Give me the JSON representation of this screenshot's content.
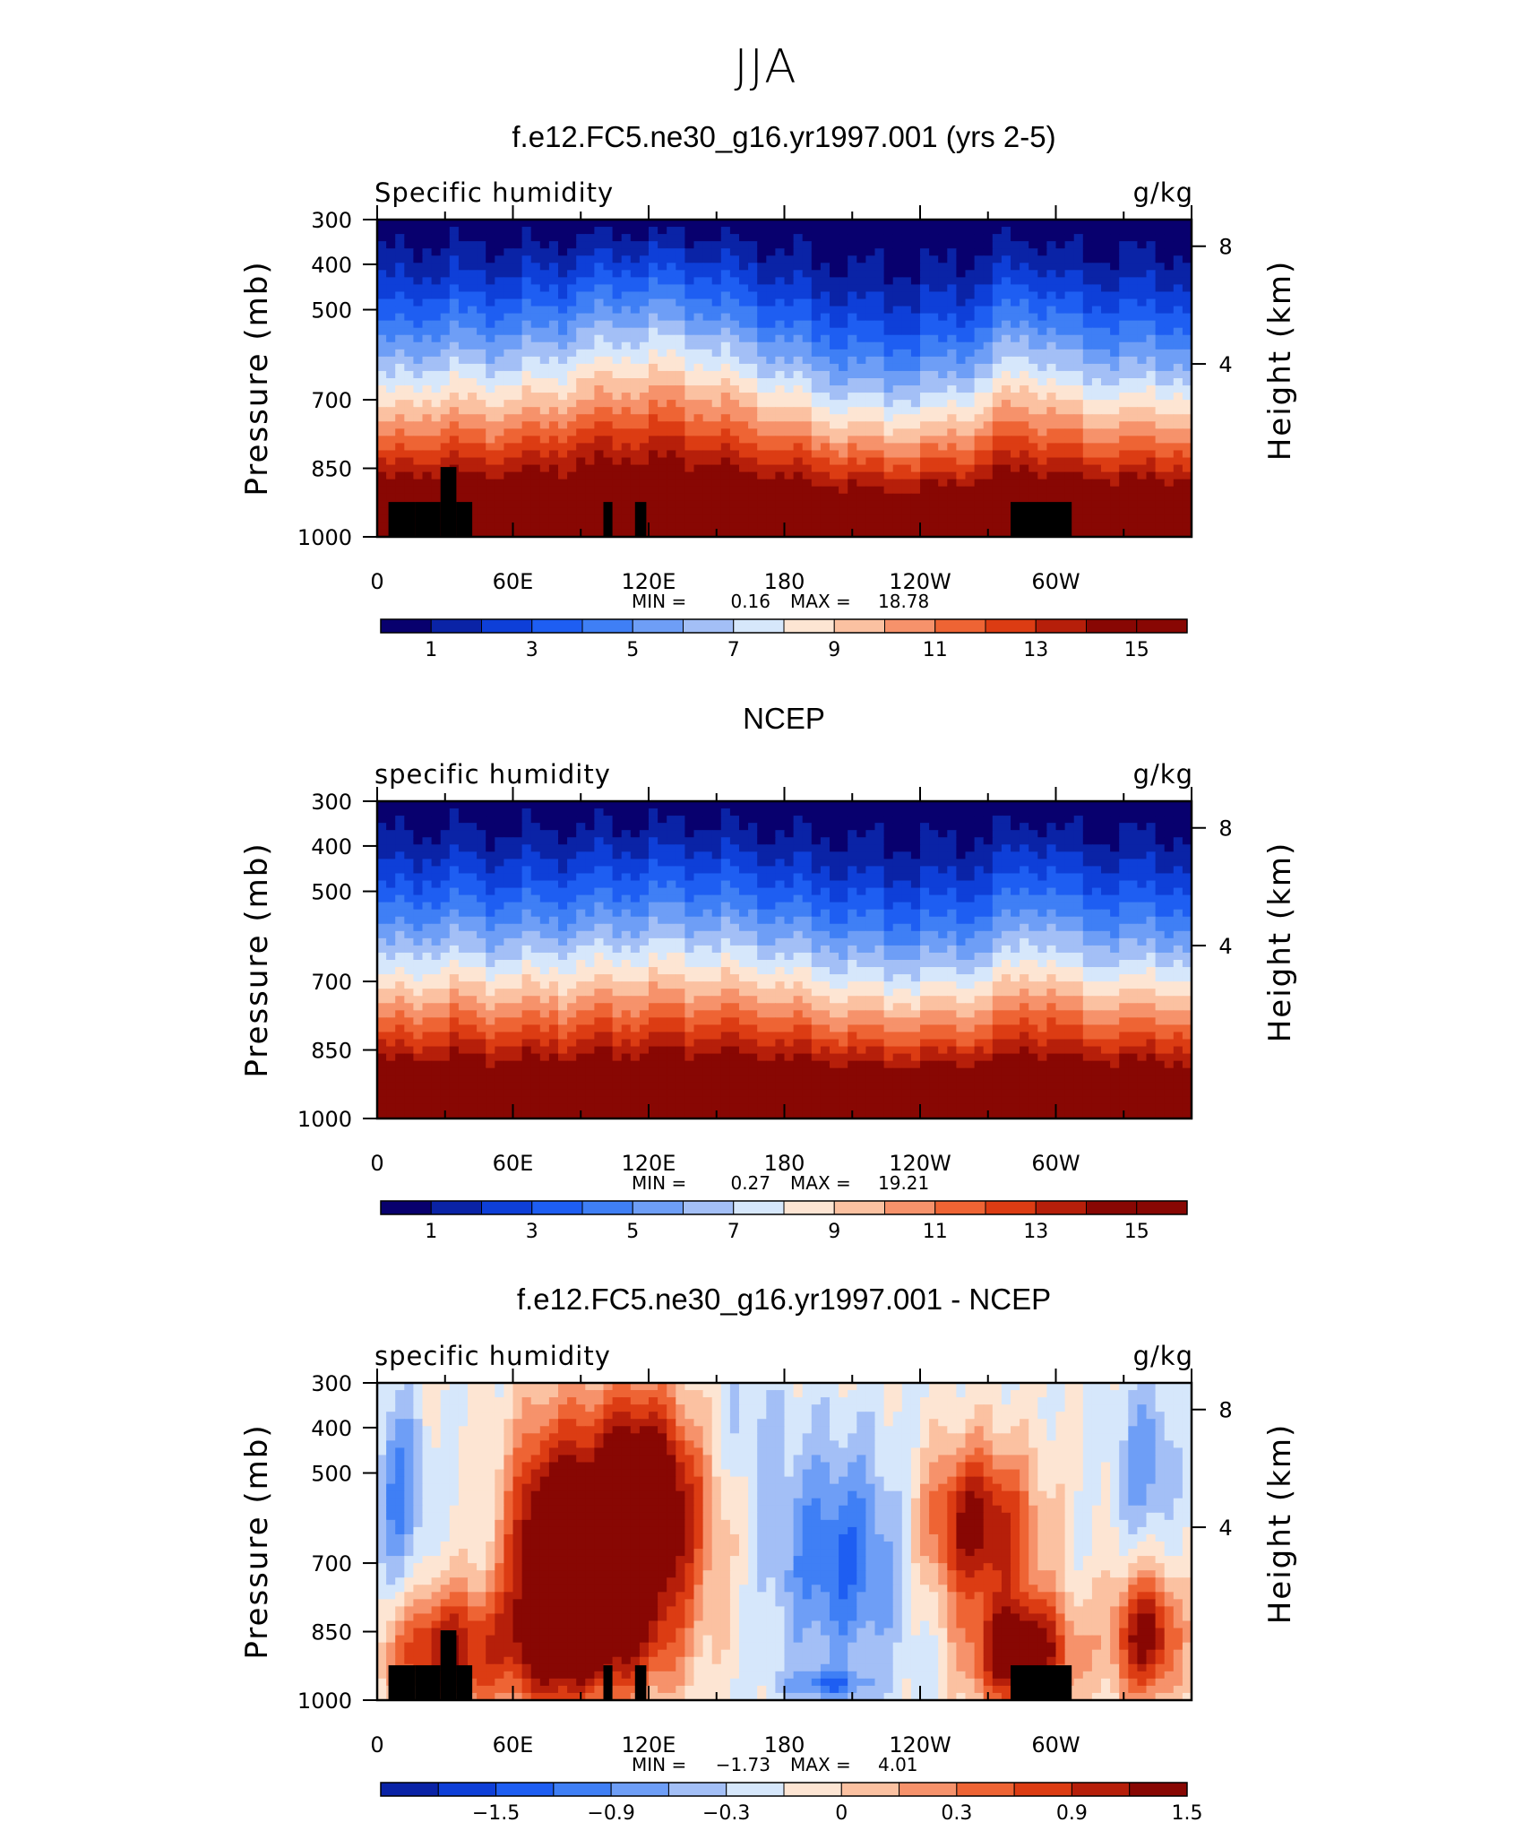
{
  "title": "JJA",
  "colors": {
    "diverging_palette": [
      "#08006e",
      "#0a23a6",
      "#0e3fd8",
      "#1e5ef2",
      "#3f7ff5",
      "#6e9ef6",
      "#a3bff6",
      "#d6e7fb",
      "#fde5d3",
      "#fbc1a1",
      "#f6926b",
      "#ee6434",
      "#dc3c13",
      "#b61f0a",
      "#880703"
    ]
  },
  "chart_data": [
    {
      "type": "heatmap",
      "title": "f.e12.FC5.ne30_g16.yr1997.001 (yrs 2-5)",
      "left_label": "Specific humidity",
      "right_label": "g/kg",
      "ylabel": "Pressure (mb)",
      "ylabel_right": "Height (km)",
      "yticks": [
        "300",
        "400",
        "500",
        "700",
        "850",
        "1000"
      ],
      "yticks_right": [
        "8",
        "4"
      ],
      "xticks": [
        "0",
        "60E",
        "120E",
        "180",
        "120W",
        "60W"
      ],
      "min_label": "MIN =",
      "min_value": "0.16",
      "max_label": "MAX =",
      "max_value": "18.78",
      "colorbar_labels": [
        "1",
        "3",
        "5",
        "7",
        "9",
        "11",
        "13",
        "15"
      ],
      "levels": [
        1,
        2,
        3,
        4,
        5,
        6,
        7,
        8,
        9,
        10,
        11,
        12,
        13,
        14,
        15
      ]
    },
    {
      "type": "heatmap",
      "title": "NCEP",
      "left_label": "specific humidity",
      "right_label": "g/kg",
      "ylabel": "Pressure (mb)",
      "ylabel_right": "Height (km)",
      "yticks": [
        "300",
        "400",
        "500",
        "700",
        "850",
        "1000"
      ],
      "yticks_right": [
        "8",
        "4"
      ],
      "xticks": [
        "0",
        "60E",
        "120E",
        "180",
        "120W",
        "60W"
      ],
      "min_label": "MIN =",
      "min_value": "0.27",
      "max_label": "MAX =",
      "max_value": "19.21",
      "colorbar_labels": [
        "1",
        "3",
        "5",
        "7",
        "9",
        "11",
        "13",
        "15"
      ],
      "levels": [
        1,
        2,
        3,
        4,
        5,
        6,
        7,
        8,
        9,
        10,
        11,
        12,
        13,
        14,
        15
      ]
    },
    {
      "type": "heatmap",
      "title": "f.e12.FC5.ne30_g16.yr1997.001 - NCEP",
      "left_label": "specific humidity",
      "right_label": "g/kg",
      "ylabel": "Pressure (mb)",
      "ylabel_right": "Height (km)",
      "yticks": [
        "300",
        "400",
        "500",
        "700",
        "850",
        "1000"
      ],
      "yticks_right": [
        "8",
        "4"
      ],
      "xticks": [
        "0",
        "60E",
        "120E",
        "180",
        "120W",
        "60W"
      ],
      "min_label": "MIN =",
      "min_value": "−1.73",
      "max_label": "MAX =",
      "max_value": "4.01",
      "colorbar_labels": [
        "−1.5",
        "−0.9",
        "−0.3",
        "0",
        "0.3",
        "0.9",
        "1.5"
      ],
      "levels": [
        -1.8,
        -1.5,
        -1.2,
        -0.9,
        -0.6,
        -0.3,
        0,
        0.3,
        0.6,
        0.9,
        1.2,
        1.5,
        1.8
      ]
    }
  ]
}
